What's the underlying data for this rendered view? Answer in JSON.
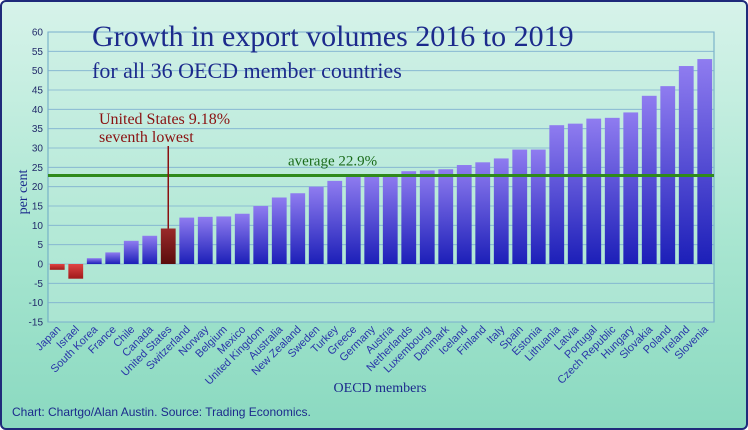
{
  "chart_data": {
    "type": "bar",
    "title": "Growth in export volumes 2016 to 2019",
    "subtitle": "for all 36 OECD member countries",
    "xlabel": "OECD members",
    "ylabel": "per cent",
    "ylim": [
      -15,
      60
    ],
    "yticks": [
      -15,
      -10,
      -5,
      0,
      5,
      10,
      15,
      20,
      25,
      30,
      35,
      40,
      45,
      50,
      55,
      60
    ],
    "grid": true,
    "categories": [
      "Japan",
      "Israel",
      "South Korea",
      "France",
      "Chile",
      "Canada",
      "United States",
      "Switzerland",
      "Norway",
      "Belgium",
      "Mexico",
      "United Kingdom",
      "Australia",
      "New Zealand",
      "Sweden",
      "Turkey",
      "Greece",
      "Germany",
      "Austria",
      "Netherlands",
      "Luxembourg",
      "Denmark",
      "Iceland",
      "Finland",
      "Italy",
      "Spain",
      "Estonia",
      "Lithuania",
      "Latvia",
      "Portugal",
      "Czech Republic",
      "Hungary",
      "Slovakia",
      "Poland",
      "Ireland",
      "Slovenia"
    ],
    "values": [
      -1.5,
      -3.8,
      1.5,
      3.0,
      6.0,
      7.3,
      9.18,
      12.0,
      12.2,
      12.3,
      13.0,
      15.0,
      17.2,
      18.3,
      20.0,
      21.5,
      22.8,
      22.9,
      23.0,
      24.0,
      24.2,
      24.5,
      25.6,
      26.3,
      27.3,
      29.6,
      29.6,
      35.9,
      36.3,
      37.6,
      37.8,
      39.2,
      43.5,
      46.0,
      51.2,
      53.0
    ],
    "average": 22.9,
    "average_label": "average 22.9%",
    "annotation": {
      "line1": "United States 9.18%",
      "line2": "seventh lowest",
      "target_category": "United States"
    },
    "colors": {
      "bar_positive": "#3b3ad6",
      "bar_negative": "#c0272d",
      "bar_highlight": "#7a1414",
      "average_line": "#2f8a1c",
      "title": "#1c2a8c"
    }
  },
  "source": "Chart: Chartgo/Alan Austin. Source: Trading Economics."
}
